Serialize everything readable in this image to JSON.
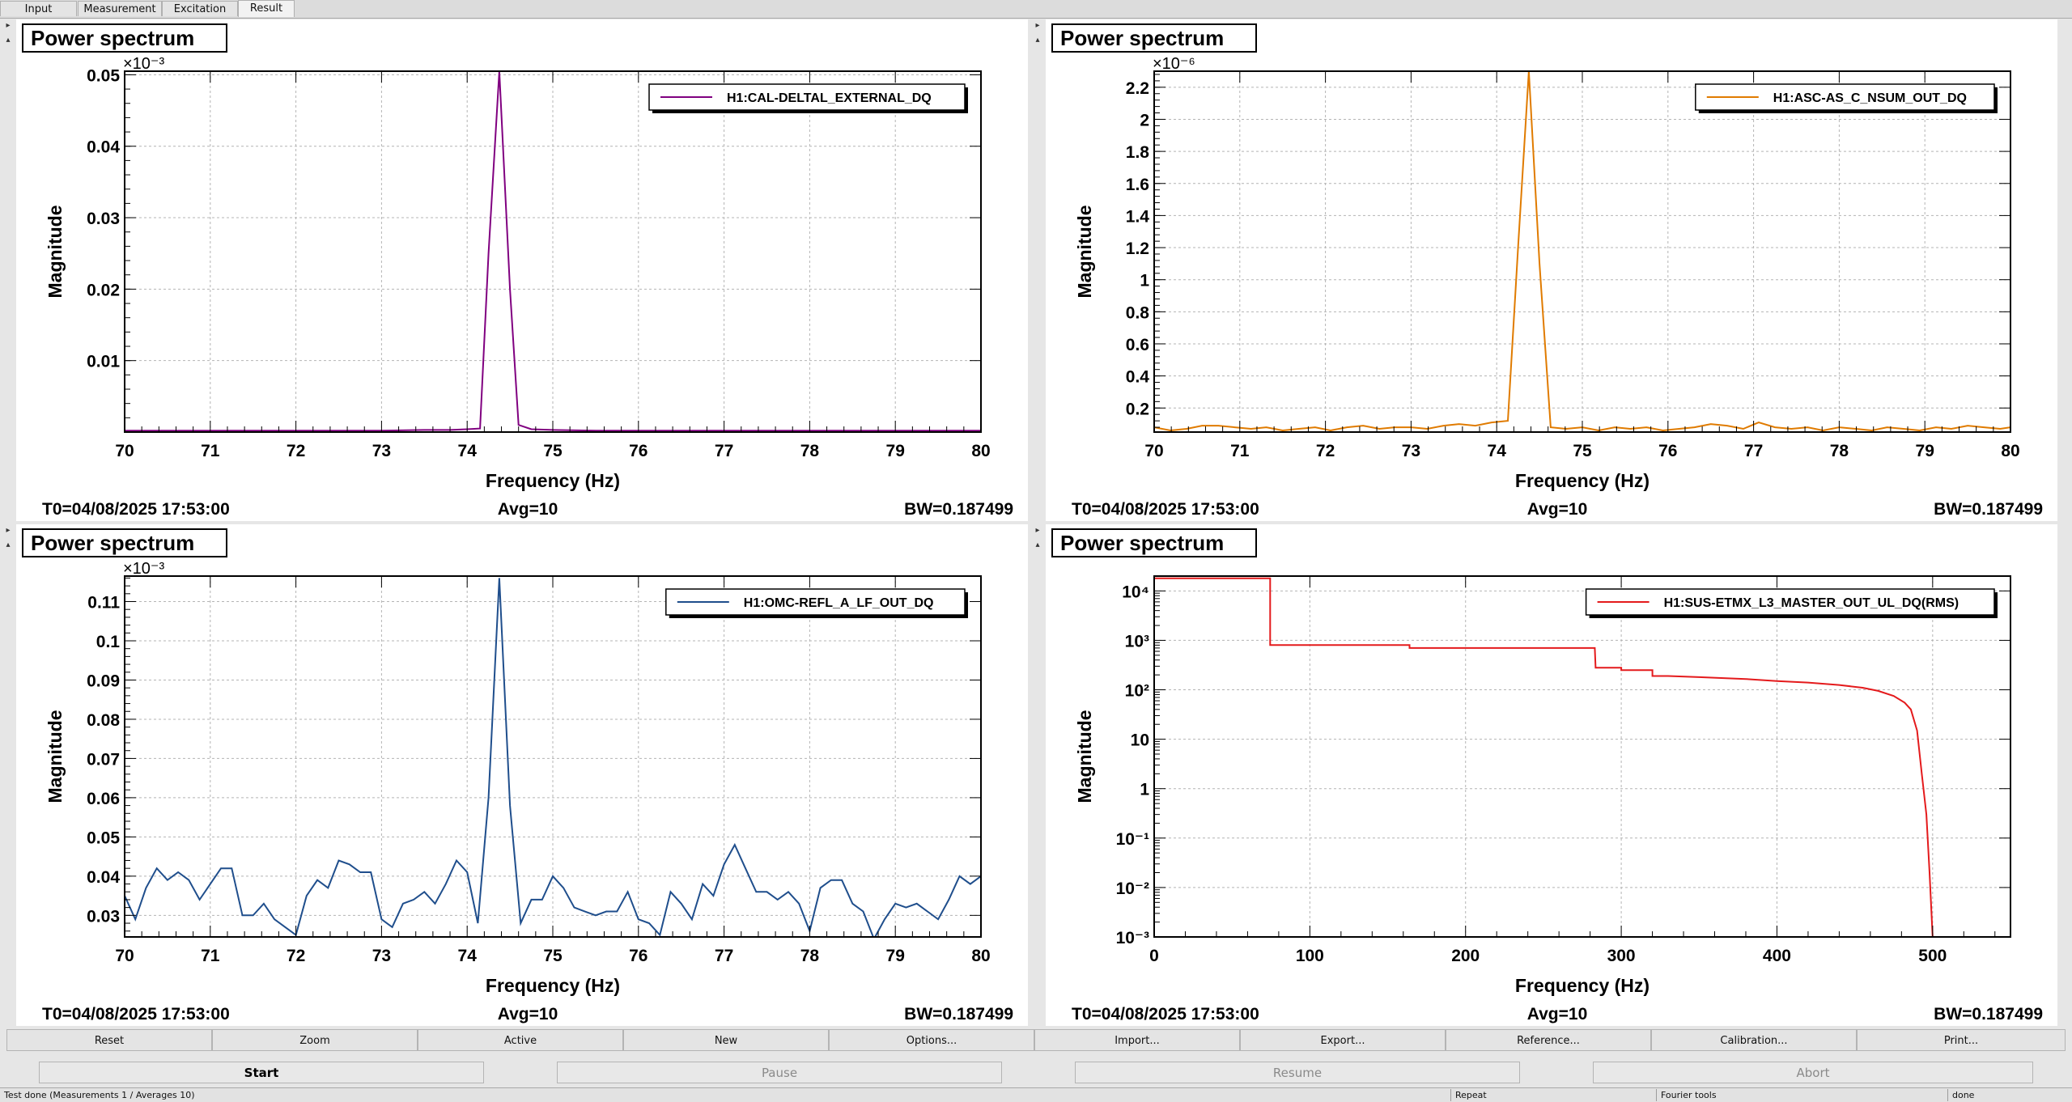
{
  "tabs": [
    {
      "label": "Input"
    },
    {
      "label": "Measurement"
    },
    {
      "label": "Excitation"
    },
    {
      "label": "Result",
      "active": true
    }
  ],
  "panels": [
    {
      "title": "Power spectrum",
      "trace_color": "#800080",
      "footer": {
        "t0": "T0=04/08/2025 17:53:00",
        "avg": "Avg=10",
        "bw": "BW=0.187499"
      },
      "chart_data": {
        "type": "line",
        "yscale": "linear",
        "xlabel": "Frequency (Hz)",
        "ylabel": "Magnitude",
        "exponent_label": "×10⁻³",
        "xlim": [
          70,
          80
        ],
        "ylim": [
          0.0,
          0.0505
        ],
        "xticks": [
          70,
          71,
          72,
          73,
          74,
          75,
          76,
          77,
          78,
          79,
          80
        ],
        "xtick_labels": [
          "70",
          "71",
          "72",
          "73",
          "74",
          "75",
          "76",
          "77",
          "78",
          "79",
          "80"
        ],
        "yticks": [
          0.01,
          0.02,
          0.03,
          0.04,
          0.05
        ],
        "ytick_labels": [
          "0.01",
          "0.02",
          "0.03",
          "0.04",
          "0.05"
        ],
        "grid": true,
        "legend_position": "top-right",
        "series": [
          {
            "name": "H1:CAL-DELTAL_EXTERNAL_DQ",
            "x": [
              70,
              70.5,
              71,
              71.5,
              72,
              72.5,
              73,
              73.5,
              73.8,
              74.0,
              74.15,
              74.25,
              74.375,
              74.5,
              74.6,
              74.75,
              75,
              75.5,
              76,
              76.5,
              77,
              77.5,
              78,
              78.5,
              79,
              79.5,
              80
            ],
            "y": [
              0.0002,
              0.0002,
              0.0002,
              0.0002,
              0.0002,
              0.0002,
              0.0002,
              0.0003,
              0.0003,
              0.0004,
              0.0005,
              0.025,
              0.0505,
              0.02,
              0.001,
              0.0004,
              0.0003,
              0.0002,
              0.0002,
              0.0002,
              0.0002,
              0.0002,
              0.0002,
              0.0002,
              0.0002,
              0.0002,
              0.0002
            ]
          }
        ]
      }
    },
    {
      "title": "Power spectrum",
      "trace_color": "#e07b00",
      "footer": {
        "t0": "T0=04/08/2025 17:53:00",
        "avg": "Avg=10",
        "bw": "BW=0.187499"
      },
      "chart_data": {
        "type": "line",
        "yscale": "linear",
        "xlabel": "Frequency (Hz)",
        "ylabel": "Magnitude",
        "exponent_label": "×10⁻⁶",
        "xlim": [
          70,
          80
        ],
        "ylim": [
          0.05,
          2.3
        ],
        "xticks": [
          70,
          71,
          72,
          73,
          74,
          75,
          76,
          77,
          78,
          79,
          80
        ],
        "xtick_labels": [
          "70",
          "71",
          "72",
          "73",
          "74",
          "75",
          "76",
          "77",
          "78",
          "79",
          "80"
        ],
        "yticks": [
          0.2,
          0.4,
          0.6,
          0.8,
          1.0,
          1.2,
          1.4,
          1.6,
          1.8,
          2.0,
          2.2
        ],
        "ytick_labels": [
          "0.2",
          "0.4",
          "0.6",
          "0.8",
          "1",
          "1.2",
          "1.4",
          "1.6",
          "1.8",
          "2",
          "2.2"
        ],
        "grid": true,
        "legend_position": "top-right",
        "series": [
          {
            "name": "H1:ASC-AS_C_NSUM_OUT_DQ",
            "x": [
              70,
              70.19,
              70.38,
              70.56,
              70.75,
              70.94,
              71.13,
              71.31,
              71.5,
              71.69,
              71.88,
              72.06,
              72.25,
              72.44,
              72.63,
              72.81,
              73,
              73.19,
              73.38,
              73.56,
              73.75,
              73.94,
              74.13,
              74.25,
              74.375,
              74.5,
              74.63,
              74.81,
              75,
              75.19,
              75.38,
              75.56,
              75.75,
              75.94,
              76.13,
              76.31,
              76.5,
              76.69,
              76.88,
              77.06,
              77.25,
              77.44,
              77.63,
              77.81,
              78,
              78.19,
              78.38,
              78.56,
              78.75,
              78.94,
              79.13,
              79.31,
              79.5,
              79.69,
              79.88,
              80
            ],
            "y": [
              0.08,
              0.06,
              0.07,
              0.09,
              0.09,
              0.08,
              0.07,
              0.08,
              0.06,
              0.07,
              0.08,
              0.06,
              0.08,
              0.09,
              0.07,
              0.08,
              0.08,
              0.07,
              0.09,
              0.1,
              0.09,
              0.11,
              0.12,
              1.2,
              2.3,
              1.1,
              0.08,
              0.07,
              0.08,
              0.06,
              0.08,
              0.07,
              0.08,
              0.06,
              0.07,
              0.08,
              0.1,
              0.09,
              0.07,
              0.11,
              0.08,
              0.07,
              0.08,
              0.06,
              0.08,
              0.07,
              0.06,
              0.08,
              0.07,
              0.06,
              0.08,
              0.07,
              0.09,
              0.08,
              0.07,
              0.08
            ]
          }
        ]
      }
    },
    {
      "title": "Power spectrum",
      "trace_color": "#1f4e8c",
      "footer": {
        "t0": "T0=04/08/2025 17:53:00",
        "avg": "Avg=10",
        "bw": "BW=0.187499"
      },
      "chart_data": {
        "type": "line",
        "yscale": "linear",
        "xlabel": "Frequency (Hz)",
        "ylabel": "Magnitude",
        "exponent_label": "×10⁻³",
        "xlim": [
          70,
          80
        ],
        "ylim": [
          0.0245,
          0.1165
        ],
        "xticks": [
          70,
          71,
          72,
          73,
          74,
          75,
          76,
          77,
          78,
          79,
          80
        ],
        "xtick_labels": [
          "70",
          "71",
          "72",
          "73",
          "74",
          "75",
          "76",
          "77",
          "78",
          "79",
          "80"
        ],
        "yticks": [
          0.03,
          0.04,
          0.05,
          0.06,
          0.07,
          0.08,
          0.09,
          0.1,
          0.11
        ],
        "ytick_labels": [
          "0.03",
          "0.04",
          "0.05",
          "0.06",
          "0.07",
          "0.08",
          "0.09",
          "0.1",
          "0.11"
        ],
        "grid": true,
        "legend_position": "top-right",
        "series": [
          {
            "name": "H1:OMC-REFL_A_LF_OUT_DQ",
            "x": [
              70,
              70.125,
              70.25,
              70.375,
              70.5,
              70.625,
              70.75,
              70.875,
              71,
              71.125,
              71.25,
              71.375,
              71.5,
              71.625,
              71.75,
              71.875,
              72,
              72.125,
              72.25,
              72.375,
              72.5,
              72.625,
              72.75,
              72.875,
              73,
              73.125,
              73.25,
              73.375,
              73.5,
              73.625,
              73.75,
              73.875,
              74,
              74.125,
              74.25,
              74.375,
              74.5,
              74.625,
              74.75,
              74.875,
              75,
              75.125,
              75.25,
              75.375,
              75.5,
              75.625,
              75.75,
              75.875,
              76,
              76.125,
              76.25,
              76.375,
              76.5,
              76.625,
              76.75,
              76.875,
              77,
              77.125,
              77.25,
              77.375,
              77.5,
              77.625,
              77.75,
              77.875,
              78,
              78.125,
              78.25,
              78.375,
              78.5,
              78.625,
              78.75,
              78.875,
              79,
              79.125,
              79.25,
              79.375,
              79.5,
              79.625,
              79.75,
              79.875,
              80
            ],
            "y": [
              0.035,
              0.029,
              0.037,
              0.042,
              0.039,
              0.041,
              0.039,
              0.034,
              0.038,
              0.042,
              0.042,
              0.03,
              0.03,
              0.033,
              0.029,
              0.027,
              0.025,
              0.035,
              0.039,
              0.037,
              0.044,
              0.043,
              0.041,
              0.041,
              0.029,
              0.027,
              0.033,
              0.034,
              0.036,
              0.033,
              0.038,
              0.044,
              0.041,
              0.028,
              0.06,
              0.116,
              0.058,
              0.028,
              0.034,
              0.034,
              0.04,
              0.037,
              0.032,
              0.031,
              0.03,
              0.031,
              0.031,
              0.036,
              0.029,
              0.028,
              0.025,
              0.036,
              0.033,
              0.029,
              0.038,
              0.035,
              0.043,
              0.048,
              0.042,
              0.036,
              0.036,
              0.034,
              0.036,
              0.033,
              0.026,
              0.037,
              0.039,
              0.039,
              0.033,
              0.031,
              0.024,
              0.029,
              0.033,
              0.032,
              0.033,
              0.031,
              0.029,
              0.034,
              0.04,
              0.038,
              0.04
            ]
          }
        ]
      }
    },
    {
      "title": "Power spectrum",
      "trace_color": "#e41a1c",
      "footer": {
        "t0": "T0=04/08/2025 17:53:00",
        "avg": "Avg=10",
        "bw": "BW=0.187499"
      },
      "chart_data": {
        "type": "line",
        "yscale": "log",
        "xlabel": "Frequency (Hz)",
        "ylabel": "Magnitude",
        "xlim": [
          0,
          550
        ],
        "ylim_log10": [
          -3,
          4.3
        ],
        "xticks": [
          0,
          100,
          200,
          300,
          400,
          500
        ],
        "xtick_labels": [
          "0",
          "100",
          "200",
          "300",
          "400",
          "500"
        ],
        "yticks_log10": [
          -3,
          -2,
          -1,
          0,
          1,
          2,
          3,
          4
        ],
        "ytick_labels": [
          "10⁻³",
          "10⁻²",
          "10⁻¹",
          "1",
          "10",
          "10²",
          "10³",
          "10⁴"
        ],
        "grid": true,
        "legend_position": "top-right",
        "series": [
          {
            "name": "H1:SUS-ETMX_L3_MASTER_OUT_UL_DQ(RMS)",
            "x": [
              0,
              74.5,
              74.5,
              164,
              164,
              283,
              283,
              283.5,
              300,
              300,
              320,
              320,
              330,
              350,
              380,
              400,
              420,
              440,
              455,
              465,
              475,
              482,
              486,
              490,
              493,
              496,
              498,
              500
            ],
            "y": [
              18000,
              18000,
              800,
              800,
              700,
              700,
              700,
              280,
              280,
              250,
              250,
              190,
              190,
              180,
              165,
              150,
              140,
              125,
              110,
              95,
              75,
              55,
              40,
              15,
              2,
              0.3,
              0.02,
              0.001
            ]
          }
        ]
      }
    }
  ],
  "toolbar": [
    {
      "label": "Reset"
    },
    {
      "label": "Zoom"
    },
    {
      "label": "Active"
    },
    {
      "label": "New"
    },
    {
      "label": "Options..."
    },
    {
      "label": "Import..."
    },
    {
      "label": "Export..."
    },
    {
      "label": "Reference..."
    },
    {
      "label": "Calibration..."
    },
    {
      "label": "Print..."
    }
  ],
  "controls": [
    {
      "label": "Start",
      "enabled": true
    },
    {
      "label": "Pause",
      "enabled": false
    },
    {
      "label": "Resume",
      "enabled": false
    },
    {
      "label": "Abort",
      "enabled": false
    }
  ],
  "status": {
    "message": "Test done (Measurements 1 / Averages 10)",
    "repeat": "Repeat",
    "fourier": "Fourier tools",
    "state": "done"
  },
  "colors": {
    "grid": "#b4b4b4",
    "frame": "#000000"
  }
}
